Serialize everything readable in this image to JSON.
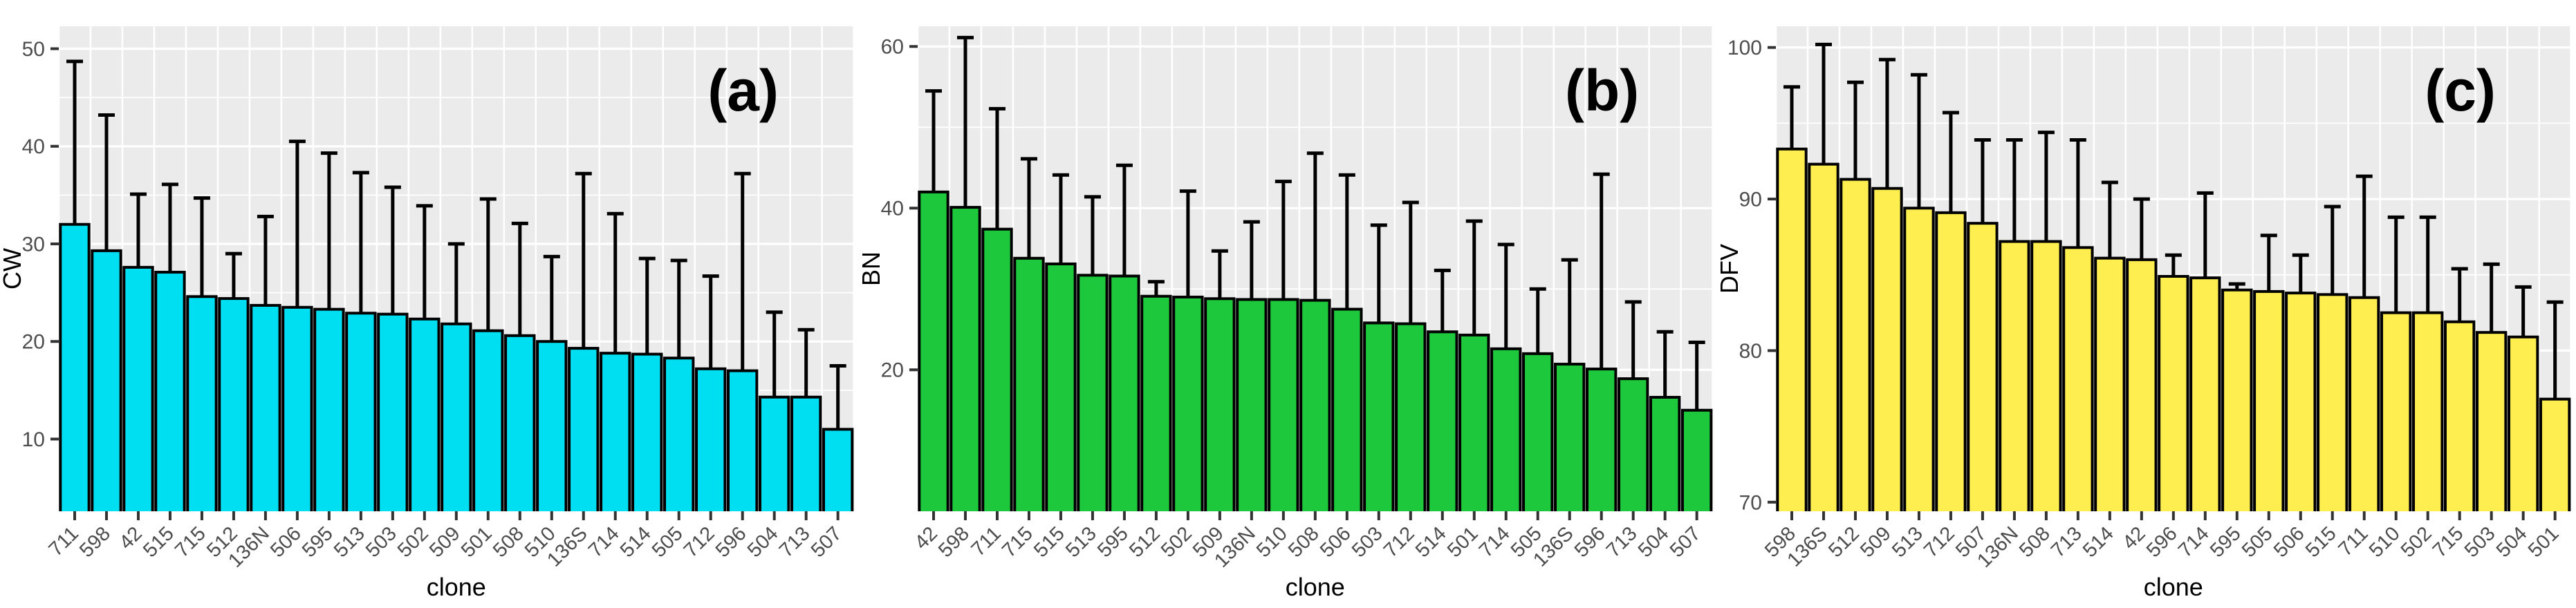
{
  "figure": {
    "description": "Three-panel bar chart figure comparing clone performance",
    "x_axis_title": "clone",
    "panel_tags": [
      "(a)",
      "(b)",
      "(c)"
    ]
  },
  "colors": {
    "panel_bg": "#EBEBEB",
    "grid": "#FFFFFF",
    "tick_label": "#4D4D4D",
    "axis_title": "#000000",
    "bar_stroke": "#000000",
    "bar_fill_a": "#00DFF2",
    "bar_fill_b": "#1EC83C",
    "bar_fill_c": "#FFEE4F"
  },
  "chart_data": [
    {
      "type": "bar",
      "tag": "(a)",
      "title": "",
      "xlabel": "clone",
      "ylabel": "CW",
      "bar_color": "#00DFF2",
      "ylim": [
        2.6,
        52.3
      ],
      "yticks": [
        10,
        20,
        30,
        40,
        50
      ],
      "yminor": [
        5,
        15,
        25,
        35,
        45
      ],
      "grid": true,
      "legend": "none",
      "categories": [
        "711",
        "598",
        "42",
        "515",
        "715",
        "512",
        "136N",
        "506",
        "595",
        "513",
        "503",
        "502",
        "509",
        "501",
        "508",
        "510",
        "136S",
        "714",
        "514",
        "505",
        "712",
        "596",
        "504",
        "713",
        "507"
      ],
      "values": [
        32.0,
        29.3,
        27.6,
        27.1,
        24.6,
        24.4,
        23.7,
        23.5,
        23.3,
        22.9,
        22.8,
        22.3,
        21.8,
        21.1,
        20.6,
        20.0,
        19.3,
        18.8,
        18.7,
        18.3,
        17.2,
        17.0,
        14.3,
        14.3,
        11.0
      ],
      "error_top": [
        48.7,
        43.2,
        35.1,
        36.1,
        34.7,
        29.0,
        32.8,
        40.5,
        39.3,
        37.3,
        35.8,
        33.9,
        30.0,
        34.6,
        32.1,
        28.7,
        37.2,
        33.1,
        28.5,
        28.3,
        26.7,
        37.2,
        23.0,
        21.2,
        17.5
      ]
    },
    {
      "type": "bar",
      "tag": "(b)",
      "title": "",
      "xlabel": "clone",
      "ylabel": "BN",
      "bar_color": "#1EC83C",
      "ylim": [
        2.5,
        62.5
      ],
      "yticks": [
        20,
        40,
        60
      ],
      "yminor": [
        10,
        30,
        50
      ],
      "grid": true,
      "legend": "none",
      "categories": [
        "42",
        "598",
        "711",
        "715",
        "515",
        "513",
        "595",
        "512",
        "502",
        "509",
        "136N",
        "510",
        "508",
        "506",
        "503",
        "712",
        "514",
        "501",
        "714",
        "505",
        "136S",
        "596",
        "713",
        "504",
        "507"
      ],
      "values": [
        42.0,
        40.1,
        37.4,
        33.8,
        33.1,
        31.7,
        31.6,
        29.1,
        29.0,
        28.8,
        28.7,
        28.7,
        28.6,
        27.5,
        25.8,
        25.7,
        24.7,
        24.3,
        22.6,
        22.0,
        20.7,
        20.1,
        18.9,
        16.6,
        15.0
      ],
      "error_top": [
        54.5,
        61.1,
        52.3,
        46.1,
        44.1,
        41.4,
        45.3,
        30.9,
        42.1,
        34.7,
        38.3,
        43.3,
        46.8,
        44.1,
        37.9,
        40.7,
        32.3,
        38.4,
        35.5,
        30.0,
        33.6,
        44.2,
        28.4,
        24.7,
        23.4
      ]
    },
    {
      "type": "bar",
      "tag": "(c)",
      "title": "",
      "xlabel": "clone",
      "ylabel": "DFV",
      "bar_color": "#FFEE4F",
      "ylim": [
        69.4,
        101.4
      ],
      "yticks": [
        70,
        80,
        90,
        100
      ],
      "yminor": [
        75,
        85,
        95
      ],
      "grid": true,
      "legend": "none",
      "categories": [
        "598",
        "136S",
        "512",
        "509",
        "513",
        "712",
        "507",
        "136N",
        "508",
        "713",
        "514",
        "42",
        "596",
        "714",
        "595",
        "505",
        "506",
        "515",
        "711",
        "510",
        "502",
        "715",
        "503",
        "504",
        "501"
      ],
      "values": [
        93.3,
        92.3,
        91.3,
        90.7,
        89.4,
        89.1,
        88.4,
        87.2,
        87.2,
        86.8,
        86.1,
        86.0,
        84.9,
        84.8,
        84.0,
        83.9,
        83.8,
        83.7,
        83.5,
        82.5,
        82.5,
        81.9,
        81.2,
        80.9,
        76.8
      ],
      "error_top": [
        97.4,
        100.2,
        97.7,
        99.2,
        98.2,
        95.7,
        93.9,
        93.9,
        94.4,
        93.9,
        91.1,
        90.0,
        86.3,
        90.4,
        84.4,
        87.6,
        86.3,
        89.5,
        91.5,
        88.8,
        88.8,
        85.4,
        85.7,
        84.2,
        83.2
      ]
    }
  ]
}
